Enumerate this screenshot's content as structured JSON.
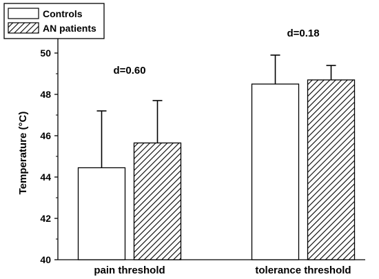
{
  "chart_data": {
    "type": "bar",
    "categories": [
      "pain threshold",
      "tolerance threshold"
    ],
    "series": [
      {
        "name": "Controls",
        "values": [
          44.45,
          48.5
        ],
        "errors": [
          2.75,
          1.4
        ],
        "fill": "#ffffff",
        "pattern": "none"
      },
      {
        "name": "AN patients",
        "values": [
          45.65,
          48.7
        ],
        "errors": [
          2.05,
          0.7
        ],
        "fill": "#ffffff",
        "pattern": "diagonal-hatch"
      }
    ],
    "ylabel": "Temperature (°C)",
    "xlabel": "",
    "ylim": [
      40,
      51
    ],
    "yticks": [
      40,
      42,
      44,
      46,
      48,
      50
    ],
    "annotations": [
      {
        "category": "pain threshold",
        "text": "d=0.60",
        "y": 49
      },
      {
        "category": "tolerance threshold",
        "text": "d=0.18",
        "y": 50.8
      }
    ],
    "legend": "top-left",
    "grid": false,
    "colors": {
      "bar_stroke": "#000000",
      "hatch": "#000000",
      "axis": "#000000"
    }
  }
}
